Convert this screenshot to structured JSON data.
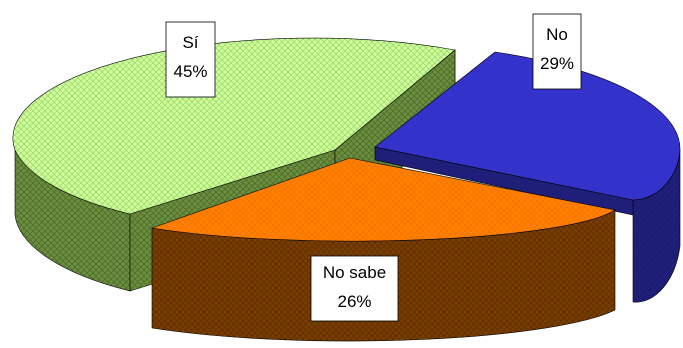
{
  "chart_data": {
    "type": "pie",
    "style": "3d-exploded",
    "slices": [
      {
        "label": "Sí",
        "value": 45,
        "value_label": "45%",
        "top_color": "#ccff99",
        "side_color": "#6b8e3f",
        "pattern": "crosshatch"
      },
      {
        "label": "No",
        "value": 29,
        "value_label": "29%",
        "top_color": "#3333cc",
        "side_color": "#1f1f7a",
        "pattern": "none"
      },
      {
        "label": "No sabe",
        "value": 26,
        "value_label": "26%",
        "top_color": "#ff8000",
        "side_color": "#7a3d00",
        "pattern": "crosshatch"
      }
    ],
    "title": "",
    "legend": "none"
  }
}
